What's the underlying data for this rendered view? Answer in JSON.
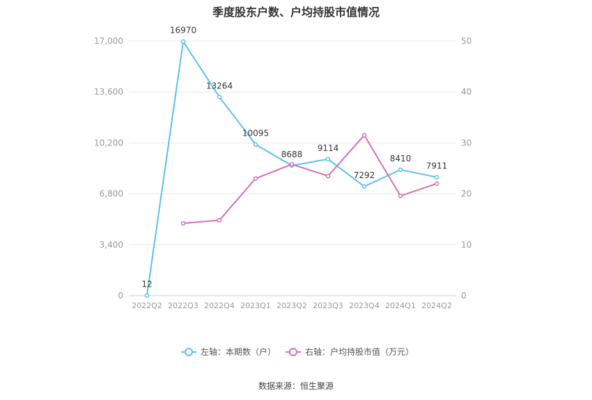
{
  "chart_data": {
    "type": "line",
    "title": "季度股东户数、户均持股市值情况",
    "categories": [
      "2022Q2",
      "2022Q3",
      "2022Q4",
      "2023Q1",
      "2023Q2",
      "2023Q3",
      "2023Q4",
      "2024Q1",
      "2024Q2"
    ],
    "left_axis": {
      "ticks": [
        "0",
        "3,400",
        "6,800",
        "10,200",
        "13,600",
        "17,000"
      ],
      "ylim": [
        0,
        17000
      ]
    },
    "right_axis": {
      "ticks": [
        "0",
        "10",
        "20",
        "30",
        "40",
        "50"
      ],
      "ylim": [
        0,
        50
      ]
    },
    "series": [
      {
        "name": "左轴：本期数（户）",
        "axis": "left",
        "color": "#5bc0eb",
        "values": [
          12,
          16970,
          13264,
          10095,
          8688,
          9114,
          7292,
          8410,
          7911
        ],
        "labels": [
          "12",
          "16970",
          "13264",
          "10095",
          "8688",
          "9114",
          "7292",
          "8410",
          "7911"
        ]
      },
      {
        "name": "右轴：户均持股市值（万元）",
        "axis": "right",
        "color": "#d36fb2",
        "values": [
          null,
          14.2,
          14.8,
          23.0,
          25.8,
          23.5,
          31.5,
          19.6,
          22.0
        ]
      }
    ],
    "grid": true,
    "legend_position": "bottom"
  },
  "footer": {
    "source": "数据来源：恒生聚源"
  }
}
